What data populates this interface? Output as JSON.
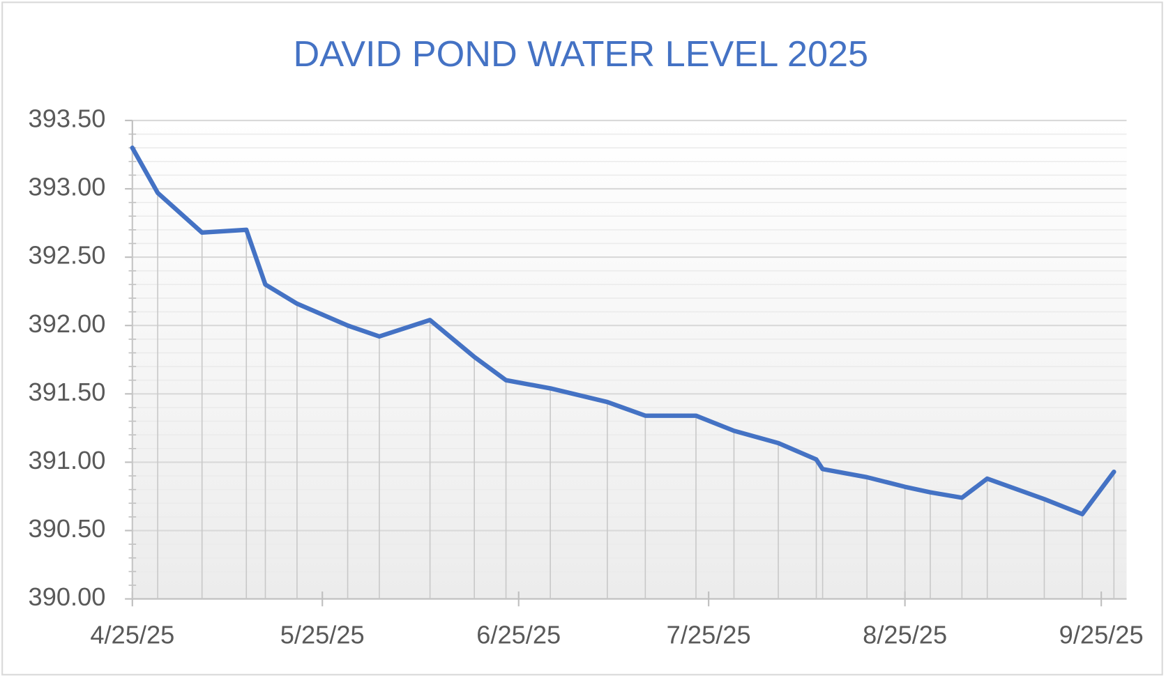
{
  "chart_data": {
    "type": "line",
    "title": "DAVID POND WATER LEVEL 2025",
    "x": [
      "4/25/25",
      "4/29/25",
      "5/6/25",
      "5/13/25",
      "5/16/25",
      "5/21/25",
      "5/29/25",
      "6/3/25",
      "6/11/25",
      "6/18/25",
      "6/23/25",
      "6/30/25",
      "7/9/25",
      "7/15/25",
      "7/23/25",
      "7/29/25",
      "8/5/25",
      "8/11/25",
      "8/12/25",
      "8/19/25",
      "8/25/25",
      "8/29/25",
      "9/3/25",
      "9/7/25",
      "9/16/25",
      "9/22/25",
      "9/27/25"
    ],
    "series": [
      {
        "name": "Water level",
        "color": "#4472c4",
        "values": [
          393.3,
          392.97,
          392.68,
          392.7,
          392.3,
          392.16,
          392.0,
          391.92,
          392.04,
          391.77,
          391.6,
          391.54,
          391.44,
          391.34,
          391.34,
          391.23,
          391.14,
          391.02,
          390.95,
          390.89,
          390.82,
          390.78,
          390.74,
          390.88,
          390.73,
          390.62,
          390.93
        ]
      }
    ],
    "xlim": [
      "4/25/25",
      "9/29/25"
    ],
    "xticks": [
      "4/25/25",
      "5/25/25",
      "6/25/25",
      "7/25/25",
      "8/25/25",
      "9/25/25"
    ],
    "ylim": [
      390,
      393.5
    ],
    "yticks": [
      {
        "value": 390,
        "label": "390.00"
      },
      {
        "value": 390.5,
        "label": "390.50"
      },
      {
        "value": 391,
        "label": "391.00"
      },
      {
        "value": 391.5,
        "label": "391.50"
      },
      {
        "value": 392,
        "label": "392.00"
      },
      {
        "value": 392.5,
        "label": "392.50"
      },
      {
        "value": 393,
        "label": "393.00"
      },
      {
        "value": 393.5,
        "label": "393.50"
      }
    ],
    "grid": true,
    "minor_grid": true,
    "drop_lines": true
  }
}
